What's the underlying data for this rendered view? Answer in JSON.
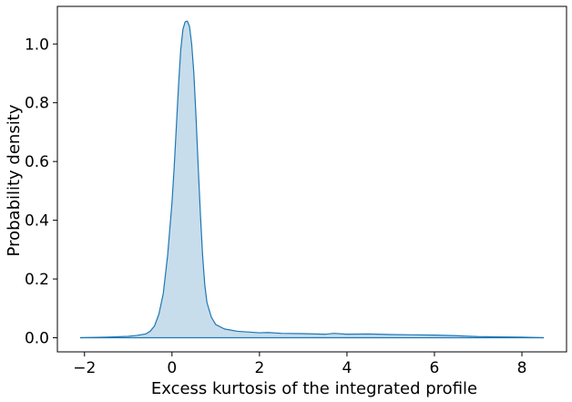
{
  "chart_data": {
    "type": "area",
    "title": "",
    "xlabel": "Excess kurtosis of the integrated profile",
    "ylabel": "Probability density",
    "xlim": [
      -2.62,
      9.02
    ],
    "ylim": [
      -0.048,
      1.128
    ],
    "grid": false,
    "legend": "none",
    "xticks": [
      -2,
      0,
      2,
      4,
      6,
      8
    ],
    "xtick_labels": [
      "−2",
      "0",
      "2",
      "4",
      "6",
      "8"
    ],
    "yticks": [
      0.0,
      0.2,
      0.4,
      0.6,
      0.8,
      1.0
    ],
    "ytick_labels": [
      "0.0",
      "0.2",
      "0.4",
      "0.6",
      "0.8",
      "1.0"
    ],
    "line_color": "#1f77b4",
    "fill_color": "#1f77b4",
    "fill_opacity": 0.25,
    "series": [
      {
        "x": [
          -2.1,
          -1.5,
          -1.0,
          -0.8,
          -0.6,
          -0.5,
          -0.4,
          -0.3,
          -0.2,
          -0.1,
          0.0,
          0.05,
          0.1,
          0.15,
          0.2,
          0.25,
          0.3,
          0.35,
          0.4,
          0.45,
          0.5,
          0.55,
          0.6,
          0.65,
          0.7,
          0.75,
          0.8,
          0.9,
          1.0,
          1.2,
          1.5,
          2.0,
          2.2,
          2.5,
          3.0,
          3.5,
          3.7,
          4.0,
          4.5,
          5.0,
          5.5,
          6.0,
          6.5,
          7.0,
          7.5,
          8.0,
          8.5
        ],
        "y": [
          0.0,
          0.002,
          0.005,
          0.008,
          0.013,
          0.022,
          0.04,
          0.08,
          0.15,
          0.28,
          0.46,
          0.58,
          0.72,
          0.86,
          0.98,
          1.05,
          1.075,
          1.078,
          1.06,
          1.0,
          0.9,
          0.75,
          0.58,
          0.42,
          0.28,
          0.18,
          0.12,
          0.07,
          0.045,
          0.03,
          0.022,
          0.017,
          0.018,
          0.015,
          0.014,
          0.012,
          0.015,
          0.012,
          0.013,
          0.011,
          0.01,
          0.009,
          0.007,
          0.004,
          0.003,
          0.002,
          0.0
        ]
      }
    ]
  }
}
